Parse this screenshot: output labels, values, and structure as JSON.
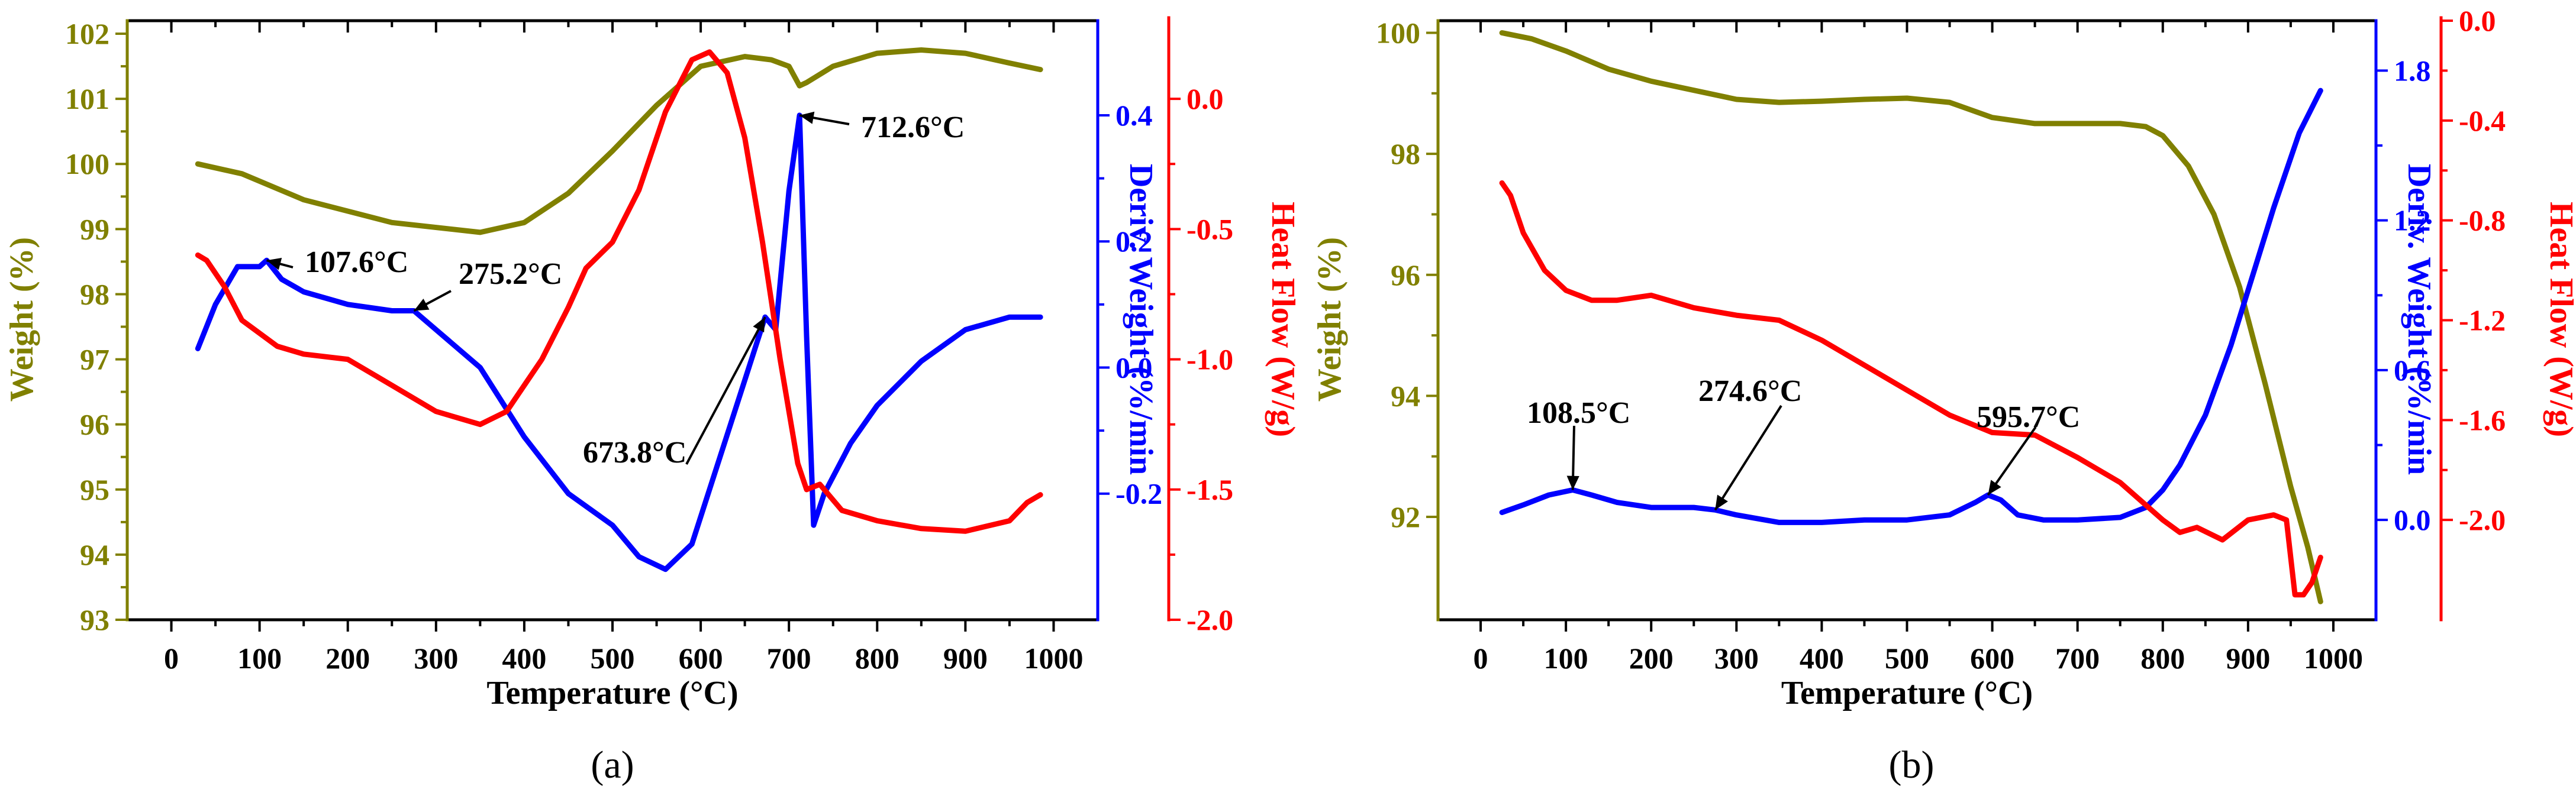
{
  "chart_data": [
    {
      "type": "line",
      "panel_label": "(a)",
      "xlabel": "Temperature (°C)",
      "xlim": [
        -50,
        1050
      ],
      "xticks": [
        0,
        100,
        200,
        300,
        400,
        500,
        600,
        700,
        800,
        900,
        1000
      ],
      "x_tick_labels": [
        "0",
        "100",
        "200",
        "300",
        "400",
        "500",
        "600",
        "700",
        "800",
        "900",
        "1000"
      ],
      "axes": {
        "weight": {
          "label": "Weight (%)",
          "color": "#808000",
          "side": "left",
          "lim": [
            93,
            102.2
          ],
          "ticks": [
            93,
            94,
            95,
            96,
            97,
            98,
            99,
            100,
            101,
            102
          ],
          "tick_labels": [
            "93",
            "94",
            "95",
            "96",
            "97",
            "98",
            "99",
            "100",
            "101",
            "102"
          ]
        },
        "deriv": {
          "label": "Deriv. Weight (%/min",
          "color": "#0000ff",
          "side": "right",
          "lim": [
            -0.4,
            0.55
          ],
          "ticks": [
            -0.2,
            0.0,
            0.2,
            0.4
          ],
          "tick_labels": [
            "-0.2",
            "0.0",
            "0.2",
            "0.4"
          ]
        },
        "heat": {
          "label": "Heat Flow (W/g)",
          "color": "#ff0000",
          "side": "right-outer",
          "lim": [
            -2.0,
            0.3
          ],
          "ticks": [
            -2.0,
            -1.5,
            -1.0,
            -0.5,
            0.0
          ],
          "tick_labels": [
            "-2.0",
            "-1.5",
            "-1.0",
            "-0.5",
            "0.0"
          ]
        }
      },
      "series": [
        {
          "name": "Weight",
          "axis": "weight",
          "color": "#808000",
          "x": [
            30,
            80,
            150,
            250,
            350,
            400,
            450,
            500,
            550,
            600,
            650,
            680,
            700,
            712,
            720,
            750,
            800,
            850,
            900,
            950,
            985
          ],
          "y": [
            100.0,
            99.85,
            99.45,
            99.1,
            98.95,
            99.1,
            99.55,
            100.2,
            100.9,
            101.5,
            101.65,
            101.6,
            101.5,
            101.2,
            101.25,
            101.5,
            101.7,
            101.75,
            101.7,
            101.55,
            101.45
          ]
        },
        {
          "name": "Deriv. Weight",
          "axis": "deriv",
          "color": "#0000ff",
          "x": [
            30,
            50,
            75,
            100,
            108,
            125,
            150,
            200,
            250,
            275,
            300,
            350,
            400,
            450,
            500,
            530,
            560,
            590,
            620,
            650,
            673,
            685,
            700,
            712,
            720,
            728,
            740,
            770,
            800,
            850,
            900,
            950,
            985
          ],
          "y": [
            0.03,
            0.1,
            0.16,
            0.16,
            0.17,
            0.14,
            0.12,
            0.1,
            0.09,
            0.09,
            0.06,
            0.0,
            -0.11,
            -0.2,
            -0.25,
            -0.3,
            -0.32,
            -0.28,
            -0.15,
            -0.02,
            0.08,
            0.06,
            0.28,
            0.4,
            0.05,
            -0.25,
            -0.2,
            -0.12,
            -0.06,
            0.01,
            0.06,
            0.08,
            0.08
          ]
        },
        {
          "name": "Heat Flow",
          "axis": "heat",
          "color": "#ff0000",
          "x": [
            30,
            40,
            60,
            80,
            120,
            150,
            200,
            250,
            300,
            350,
            380,
            420,
            450,
            470,
            500,
            530,
            560,
            590,
            610,
            630,
            650,
            670,
            690,
            710,
            720,
            735,
            760,
            800,
            850,
            900,
            950,
            970,
            985
          ],
          "y": [
            -0.6,
            -0.62,
            -0.72,
            -0.85,
            -0.95,
            -0.98,
            -1.0,
            -1.1,
            -1.2,
            -1.25,
            -1.2,
            -1.0,
            -0.8,
            -0.65,
            -0.55,
            -0.35,
            -0.05,
            0.15,
            0.18,
            0.1,
            -0.15,
            -0.55,
            -1.0,
            -1.4,
            -1.5,
            -1.48,
            -1.58,
            -1.62,
            -1.65,
            -1.66,
            -1.62,
            -1.55,
            -1.52
          ]
        }
      ],
      "annotations": [
        {
          "text": "107.6°C",
          "x": 108,
          "y": 0.17,
          "axis": "deriv"
        },
        {
          "text": "275.2°C",
          "x": 275,
          "y": 0.09,
          "axis": "deriv"
        },
        {
          "text": "673.8°C",
          "x": 673,
          "y": 0.08,
          "axis": "deriv"
        },
        {
          "text": "712.6°C",
          "x": 712,
          "y": 0.4,
          "axis": "deriv"
        }
      ]
    },
    {
      "type": "line",
      "panel_label": "(b)",
      "xlabel": "Temperature (°C)",
      "xlim": [
        -50,
        1050
      ],
      "xticks": [
        0,
        100,
        200,
        300,
        400,
        500,
        600,
        700,
        800,
        900,
        1000
      ],
      "x_tick_labels": [
        "0",
        "100",
        "200",
        "300",
        "400",
        "500",
        "600",
        "700",
        "800",
        "900",
        "1000"
      ],
      "axes": {
        "weight": {
          "label": "Weight (%)",
          "color": "#808000",
          "side": "left",
          "lim": [
            90.3,
            100.2
          ],
          "ticks": [
            92,
            94,
            96,
            98,
            100
          ],
          "tick_labels": [
            "92",
            "94",
            "96",
            "98",
            "100"
          ]
        },
        "deriv": {
          "label": "Deriv. Weight (%/min",
          "color": "#0000ff",
          "side": "right",
          "lim": [
            -0.4,
            2.0
          ],
          "ticks": [
            0.0,
            0.6,
            1.2,
            1.8
          ],
          "tick_labels": [
            "0.0",
            "0.6",
            "1.2",
            "1.8"
          ]
        },
        "heat": {
          "label": "Heat Flow (W/g)",
          "color": "#ff0000",
          "side": "right-outer",
          "lim": [
            -2.4,
            0.0
          ],
          "ticks": [
            -2.0,
            -1.6,
            -1.2,
            -0.8,
            -0.4,
            0.0
          ],
          "tick_labels": [
            "-2.0",
            "-1.6",
            "-1.2",
            "-0.8",
            "-0.4",
            "0.0"
          ]
        }
      },
      "series": [
        {
          "name": "Weight",
          "axis": "weight",
          "color": "#808000",
          "x": [
            25,
            60,
            100,
            150,
            200,
            250,
            300,
            350,
            400,
            450,
            500,
            550,
            600,
            650,
            700,
            750,
            780,
            800,
            830,
            860,
            890,
            920,
            950,
            970,
            985
          ],
          "y": [
            100.0,
            99.9,
            99.7,
            99.4,
            99.2,
            99.05,
            98.9,
            98.85,
            98.87,
            98.9,
            98.92,
            98.85,
            98.6,
            98.5,
            98.5,
            98.5,
            98.45,
            98.3,
            97.8,
            97.0,
            95.8,
            94.2,
            92.5,
            91.5,
            90.6
          ]
        },
        {
          "name": "Deriv. Weight",
          "axis": "deriv",
          "color": "#0000ff",
          "x": [
            25,
            50,
            80,
            108,
            130,
            160,
            200,
            250,
            275,
            300,
            350,
            400,
            450,
            500,
            550,
            580,
            595,
            610,
            630,
            660,
            700,
            750,
            780,
            800,
            820,
            850,
            880,
            900,
            930,
            960,
            985
          ],
          "y": [
            0.03,
            0.06,
            0.1,
            0.12,
            0.1,
            0.07,
            0.05,
            0.05,
            0.04,
            0.02,
            -0.01,
            -0.01,
            0.0,
            0.0,
            0.02,
            0.07,
            0.1,
            0.08,
            0.02,
            0.0,
            0.0,
            0.01,
            0.05,
            0.12,
            0.22,
            0.42,
            0.7,
            0.92,
            1.25,
            1.55,
            1.72
          ]
        },
        {
          "name": "Heat Flow",
          "axis": "heat",
          "color": "#ff0000",
          "x": [
            25,
            35,
            50,
            75,
            100,
            130,
            160,
            200,
            250,
            300,
            350,
            400,
            450,
            500,
            550,
            600,
            650,
            700,
            750,
            800,
            820,
            840,
            870,
            900,
            930,
            945,
            955,
            965,
            975,
            985
          ],
          "y": [
            -0.65,
            -0.7,
            -0.85,
            -1.0,
            -1.08,
            -1.12,
            -1.12,
            -1.1,
            -1.15,
            -1.18,
            -1.2,
            -1.28,
            -1.38,
            -1.48,
            -1.58,
            -1.65,
            -1.66,
            -1.75,
            -1.85,
            -2.0,
            -2.05,
            -2.03,
            -2.08,
            -2.0,
            -1.98,
            -2.0,
            -2.3,
            -2.3,
            -2.25,
            -2.15
          ]
        }
      ],
      "annotations": [
        {
          "text": "108.5°C",
          "x": 108,
          "y": 0.12,
          "axis": "deriv"
        },
        {
          "text": "274.6°C",
          "x": 275,
          "y": 0.04,
          "axis": "deriv"
        },
        {
          "text": "595.7°C",
          "x": 595,
          "y": 0.1,
          "axis": "deriv"
        }
      ]
    }
  ]
}
